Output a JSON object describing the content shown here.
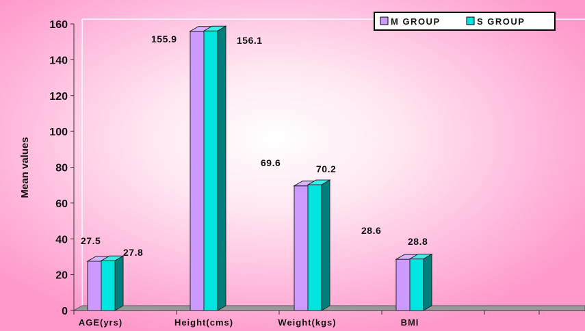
{
  "chart_data": {
    "type": "bar",
    "categories": [
      "AGE(yrs)",
      "Height(cms)",
      "Weight(kgs)",
      "BMI"
    ],
    "series": [
      {
        "name": "M GROUP",
        "values": [
          27.5,
          155.9,
          69.6,
          28.6
        ],
        "color": "#cc99ff"
      },
      {
        "name": "S GROUP",
        "values": [
          27.8,
          156.1,
          70.2,
          28.8
        ],
        "color": "#00e5e0"
      }
    ],
    "data_labels": [
      [
        "27.5",
        "155.9",
        "69.6",
        "28.6"
      ],
      [
        "27.8",
        "156.1",
        "70.2",
        "28.8"
      ]
    ],
    "ylabel": "Mean values",
    "xlabel": "",
    "ylim": [
      0,
      160
    ],
    "yticks": [
      "0",
      "20",
      "40",
      "60",
      "80",
      "100",
      "120",
      "140",
      "160"
    ],
    "grid": false,
    "legend_position": "top-right",
    "background": "#ff99cc",
    "three_d": true
  }
}
